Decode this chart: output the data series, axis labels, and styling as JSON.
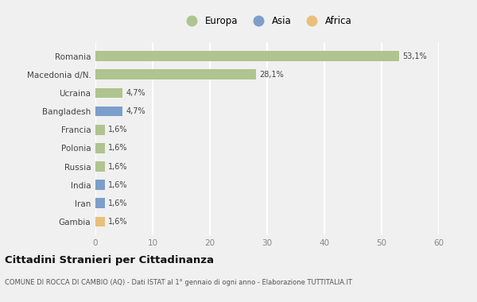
{
  "categories": [
    "Romania",
    "Macedonia d/N.",
    "Ucraina",
    "Bangladesh",
    "Francia",
    "Polonia",
    "Russia",
    "India",
    "Iran",
    "Gambia"
  ],
  "values": [
    53.1,
    28.1,
    4.7,
    4.7,
    1.6,
    1.6,
    1.6,
    1.6,
    1.6,
    1.6
  ],
  "labels": [
    "53,1%",
    "28,1%",
    "4,7%",
    "4,7%",
    "1,6%",
    "1,6%",
    "1,6%",
    "1,6%",
    "1,6%",
    "1,6%"
  ],
  "continents": [
    "Europa",
    "Europa",
    "Europa",
    "Asia",
    "Europa",
    "Europa",
    "Europa",
    "Asia",
    "Asia",
    "Africa"
  ],
  "colors": {
    "Europa": "#afc48e",
    "Asia": "#7b9fca",
    "Africa": "#e8c07a"
  },
  "bg_color": "#f0f0f0",
  "title": "Cittadini Stranieri per Cittadinanza",
  "subtitle": "COMUNE DI ROCCA DI CAMBIO (AQ) - Dati ISTAT al 1° gennaio di ogni anno - Elaborazione TUTTITALIA.IT",
  "xlim": [
    0,
    60
  ],
  "xticks": [
    0,
    10,
    20,
    30,
    40,
    50,
    60
  ]
}
